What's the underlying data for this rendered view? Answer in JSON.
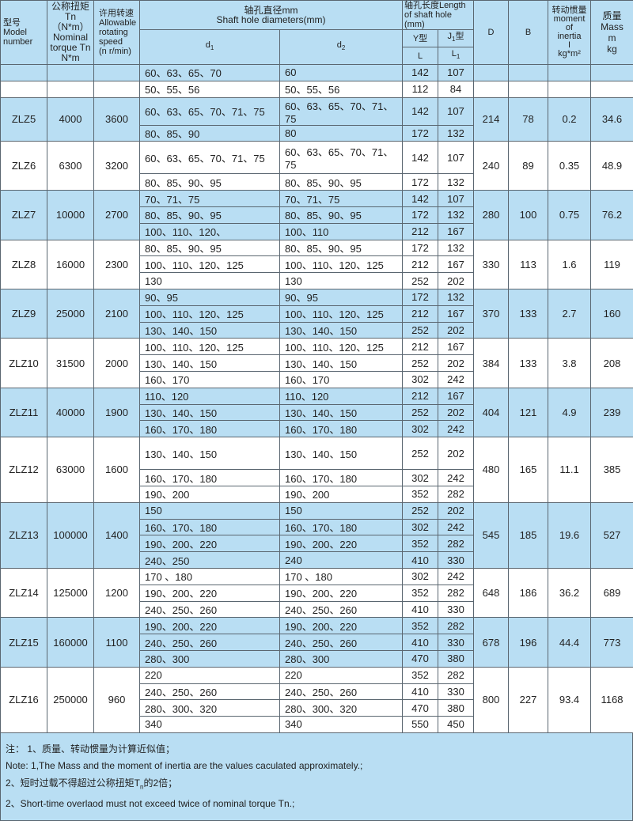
{
  "header": {
    "model": {
      "cn": "型号",
      "en1": "Model",
      "en2": "number"
    },
    "torque": {
      "cn": "公称扭矩",
      "l1": "Tn（N*m）",
      "l2": "Nominal",
      "l3": "torque Tn",
      "l4": "N*m"
    },
    "speed": {
      "cn": "许用转速",
      "l1": "Allowable",
      "l2": "rotating",
      "l3": "speed",
      "l4": "(n r/min)"
    },
    "shaft_diam": {
      "cn": "轴孔直径mm",
      "en": "Shaft hole diameters(mm)"
    },
    "d1": "d",
    "d1_sub": "1",
    "d2": "d",
    "d2_sub": "2",
    "length": {
      "cn": "轴孔长度",
      "en": "Length of shaft hole (mm)"
    },
    "y_type": "Y型",
    "j_type": "J",
    "j_sub": "1",
    "j_suffix": "型",
    "L": "L",
    "L1": "L",
    "L1_sub": "1",
    "D": "D",
    "B": "B",
    "inertia": {
      "cn": "转动惯量",
      "l1": "moment",
      "l2": "of",
      "l3": "inertia",
      "l4": "I",
      "l5": "kg*m²"
    },
    "mass": {
      "cn": "质量",
      "l1": "Mass",
      "l2": "m",
      "l3": "kg"
    }
  },
  "groups": [
    {
      "model": "",
      "torque": "",
      "speed": "",
      "D": "",
      "B": "",
      "inertia": "",
      "mass": "",
      "shade": "blue",
      "rows": [
        {
          "d1": "60、63、65、70",
          "d2": "60",
          "L": "142",
          "L1": "107"
        }
      ]
    },
    {
      "model": "",
      "torque": "",
      "speed": "",
      "D": "",
      "B": "",
      "inertia": "",
      "mass": "",
      "shade": "white",
      "rows": [
        {
          "d1": "50、55、56",
          "d2": "50、55、56",
          "L": "112",
          "L1": "84"
        }
      ]
    },
    {
      "model": "ZLZ5",
      "torque": "4000",
      "speed": "3600",
      "D": "214",
      "B": "78",
      "inertia": "0.2",
      "mass": "34.6",
      "shade": "blue",
      "rows": [
        {
          "d1": "60、63、65、70、71、75",
          "d2": "60、63、65、70、71、75",
          "L": "142",
          "L1": "107"
        },
        {
          "d1": "80、85、90",
          "d2": "80",
          "L": "172",
          "L1": "132"
        }
      ]
    },
    {
      "model": "ZLZ6",
      "torque": "6300",
      "speed": "3200",
      "D": "240",
      "B": "89",
      "inertia": "0.35",
      "mass": "48.9",
      "shade": "white",
      "rows": [
        {
          "d1": "60、63、65、70、71、75",
          "d2": "60、63、65、70、71、75",
          "L": "142",
          "L1": "107",
          "tall": true
        },
        {
          "d1": "80、85、90、95",
          "d2": "80、85、90、95",
          "L": "172",
          "L1": "132"
        }
      ]
    },
    {
      "model": "ZLZ7",
      "torque": "10000",
      "speed": "2700",
      "D": "280",
      "B": "100",
      "inertia": "0.75",
      "mass": "76.2",
      "shade": "blue",
      "rows": [
        {
          "d1": "70、71、75",
          "d2": "70、71、75",
          "L": "142",
          "L1": "107"
        },
        {
          "d1": "80、85、90、95",
          "d2": "80、85、90、95",
          "L": "172",
          "L1": "132"
        },
        {
          "d1": "100、110、120、",
          "d2": "100、110",
          "L": "212",
          "L1": "167"
        }
      ]
    },
    {
      "model": "ZLZ8",
      "torque": "16000",
      "speed": "2300",
      "D": "330",
      "B": "113",
      "inertia": "1.6",
      "mass": "119",
      "shade": "white",
      "rows": [
        {
          "d1": "80、85、90、95",
          "d2": "80、85、90、95",
          "L": "172",
          "L1": "132"
        },
        {
          "d1": "100、110、120、125",
          "d2": "100、110、120、125",
          "L": "212",
          "L1": "167"
        },
        {
          "d1": "130",
          "d2": "130",
          "L": "252",
          "L1": "202"
        }
      ]
    },
    {
      "model": "ZLZ9",
      "torque": "25000",
      "speed": "2100",
      "D": "370",
      "B": "133",
      "inertia": "2.7",
      "mass": "160",
      "shade": "blue",
      "rows": [
        {
          "d1": "90、95",
          "d2": "90、95",
          "L": "172",
          "L1": "132"
        },
        {
          "d1": "100、110、120、125",
          "d2": "100、110、120、125",
          "L": "212",
          "L1": "167"
        },
        {
          "d1": "130、140、150",
          "d2": "130、140、150",
          "L": "252",
          "L1": "202"
        }
      ]
    },
    {
      "model": "ZLZ10",
      "torque": "31500",
      "speed": "2000",
      "D": "384",
      "B": "133",
      "inertia": "3.8",
      "mass": "208",
      "shade": "white",
      "rows": [
        {
          "d1": "100、110、120、125",
          "d2": "100、110、120、125",
          "L": "212",
          "L1": "167"
        },
        {
          "d1": "130、140、150",
          "d2": "130、140、150",
          "L": "252",
          "L1": "202"
        },
        {
          "d1": "160、170",
          "d2": "160、170",
          "L": "302",
          "L1": "242"
        }
      ]
    },
    {
      "model": "ZLZ11",
      "torque": "40000",
      "speed": "1900",
      "D": "404",
      "B": "121",
      "inertia": "4.9",
      "mass": "239",
      "shade": "blue",
      "rows": [
        {
          "d1": "110、120",
          "d2": "110、120",
          "L": "212",
          "L1": "167"
        },
        {
          "d1": "130、140、150",
          "d2": "130、140、150",
          "L": "252",
          "L1": "202"
        },
        {
          "d1": "160、170、180",
          "d2": "160、170、180",
          "L": "302",
          "L1": "242"
        }
      ]
    },
    {
      "model": "ZLZ12",
      "torque": "63000",
      "speed": "1600",
      "D": "480",
      "B": "165",
      "inertia": "11.1",
      "mass": "385",
      "shade": "white",
      "rows": [
        {
          "d1": "130、140、150",
          "d2": "130、140、150",
          "L": "252",
          "L1": "202",
          "tall": true
        },
        {
          "d1": "160、170、180",
          "d2": "160、170、180",
          "L": "302",
          "L1": "242"
        },
        {
          "d1": "190、200",
          "d2": "190、200",
          "L": "352",
          "L1": "282"
        }
      ]
    },
    {
      "model": "ZLZ13",
      "torque": "100000",
      "speed": "1400",
      "D": "545",
      "B": "185",
      "inertia": "19.6",
      "mass": "527",
      "shade": "blue",
      "rows": [
        {
          "d1": "150",
          "d2": "150",
          "L": "252",
          "L1": "202"
        },
        {
          "d1": "160、170、180",
          "d2": "160、170、180",
          "L": "302",
          "L1": "242"
        },
        {
          "d1": "190、200、220",
          "d2": "190、200、220",
          "L": "352",
          "L1": "282"
        },
        {
          "d1": "240、250",
          "d2": "240",
          "L": "410",
          "L1": "330"
        }
      ]
    },
    {
      "model": "ZLZ14",
      "torque": "125000",
      "speed": "1200",
      "D": "648",
      "B": "186",
      "inertia": "36.2",
      "mass": "689",
      "shade": "white",
      "rows": [
        {
          "d1": "170 、180",
          "d2": "170 、180",
          "L": "302",
          "L1": "242"
        },
        {
          "d1": "190、200、220",
          "d2": "190、200、220",
          "L": "352",
          "L1": "282"
        },
        {
          "d1": "240、250、260",
          "d2": "240、250、260",
          "L": "410",
          "L1": "330"
        }
      ]
    },
    {
      "model": "ZLZ15",
      "torque": "160000",
      "speed": "1100",
      "D": "678",
      "B": "196",
      "inertia": "44.4",
      "mass": "773",
      "shade": "blue",
      "rows": [
        {
          "d1": "190、200、220",
          "d2": "190、200、220",
          "L": "352",
          "L1": "282"
        },
        {
          "d1": "240、250、260",
          "d2": "240、250、260",
          "L": "410",
          "L1": "330"
        },
        {
          "d1": "280、300",
          "d2": "280、300",
          "L": "470",
          "L1": "380"
        }
      ]
    },
    {
      "model": "ZLZ16",
      "torque": "250000",
      "speed": "960",
      "D": "800",
      "B": "227",
      "inertia": "93.4",
      "mass": "1168",
      "shade": "white",
      "rows": [
        {
          "d1": "220",
          "d2": "220",
          "L": "352",
          "L1": "282"
        },
        {
          "d1": "240、250、260",
          "d2": "240、250、260",
          "L": "410",
          "L1": "330"
        },
        {
          "d1": "280、300、320",
          "d2": "280、300、320",
          "L": "470",
          "L1": "380"
        },
        {
          "d1": "340",
          "d2": "340",
          "L": "550",
          "L1": "450"
        }
      ]
    }
  ],
  "notes": {
    "n1_cn": "注：   1、质量、转动惯量为计算近似值；",
    "n1_en": "Note: 1,The Mass and the moment of inertia are the values caculated approximately.;",
    "n2_cn_a": "2、短时过载不得超过公称扭矩T",
    "n2_cn_sub": "n",
    "n2_cn_b": "的2倍；",
    "n2_en": "2、Short-time overlaod must not exceed twice of nominal torque Tn.;"
  }
}
